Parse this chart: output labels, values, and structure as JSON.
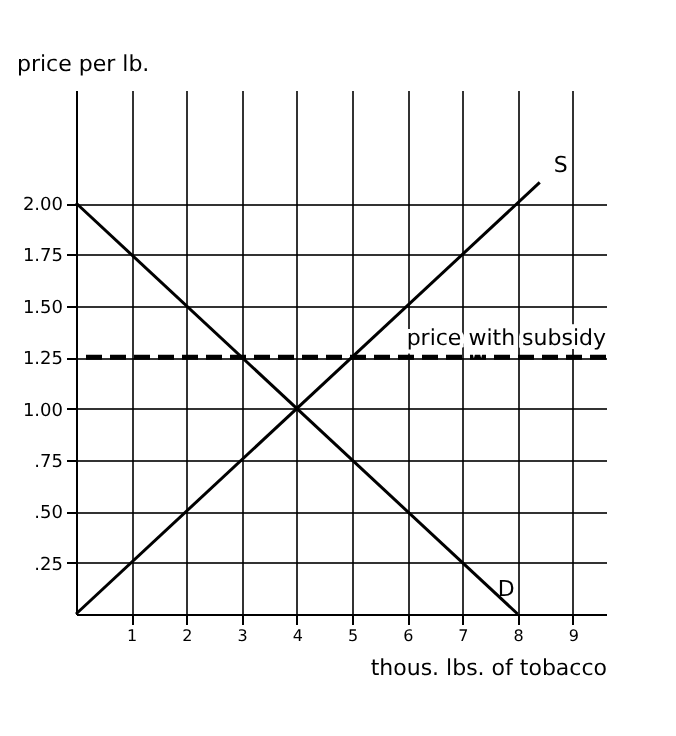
{
  "chart_data": {
    "type": "line",
    "ylabel": "price per lb.",
    "xlabel": "thous. lbs. of tobacco",
    "xlim": [
      0,
      9.6
    ],
    "xticks": [
      1,
      2,
      3,
      4,
      5,
      6,
      7,
      8,
      9
    ],
    "ylim": [
      0,
      2.55
    ],
    "yticks": [
      {
        "value": 0.25,
        "label": ".25"
      },
      {
        "value": 0.5,
        "label": ".50"
      },
      {
        "value": 0.75,
        "label": ".75"
      },
      {
        "value": 1,
        "label": "1.00"
      },
      {
        "value": 1.25,
        "label": "1.25"
      },
      {
        "value": 1.5,
        "label": "1.50"
      },
      {
        "value": 1.75,
        "label": "1.75"
      },
      {
        "value": 2,
        "label": "2.00"
      }
    ],
    "series": [
      {
        "name": "S",
        "color": "#000000",
        "x": [
          0,
          8.4
        ],
        "values": [
          0,
          2.1
        ]
      },
      {
        "name": "D",
        "color": "#000000",
        "x": [
          0,
          8
        ],
        "values": [
          2,
          0
        ]
      }
    ],
    "ref_lines": [
      {
        "axis": "y",
        "value": 1.25,
        "label": "price with subsidy",
        "line_style": "dashed",
        "color": "#000000"
      }
    ],
    "grid": true,
    "marker": "none",
    "line_style": "solid"
  }
}
